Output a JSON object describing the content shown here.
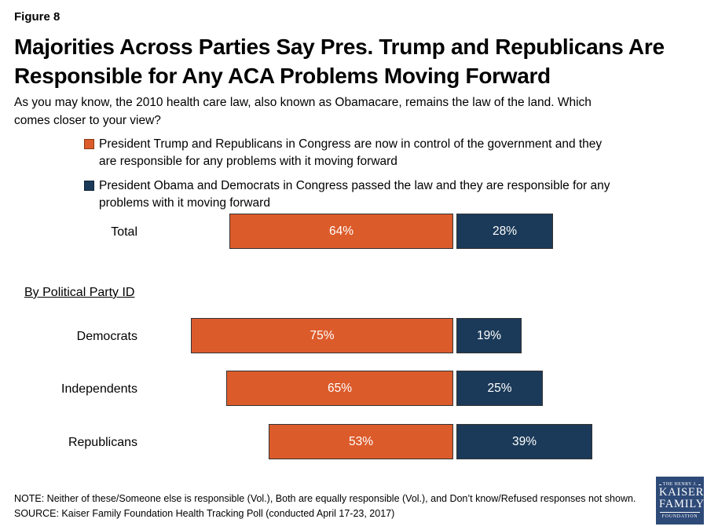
{
  "header": {
    "figure_label": "Figure 8",
    "title_lines": [
      "Majorities Across Parties Say Pres. Trump and Republicans Are",
      "Responsible for Any ACA Problems Moving Forward"
    ],
    "question_lines": [
      "As you may know, the 2010 health care law, also known as Obamacare, remains the law of the land. Which",
      "comes closer to your view?"
    ]
  },
  "legend": {
    "items": [
      {
        "color": "#DC5B2B",
        "lines": [
          "President Trump and Republicans in Congress are now in control of the government and they",
          "are responsible for any problems with it moving forward"
        ]
      },
      {
        "color": "#1B3A59",
        "lines": [
          "President Obama and Democrats in Congress passed the law and they are responsible for any",
          "problems with it moving forward"
        ]
      }
    ]
  },
  "chart_data": {
    "type": "bar",
    "orientation": "horizontal",
    "stacked": false,
    "title": "Majorities Across Parties Say Pres. Trump and Republicans Are Responsible for Any ACA Problems Moving Forward",
    "categories": [
      "Total",
      "Democrats",
      "Independents",
      "Republicans"
    ],
    "group_label": "By Political Party ID",
    "series": [
      {
        "name": "President Trump and Republicans in Congress are now in control of the government and they are responsible for any problems with it moving forward",
        "color": "#DC5B2B",
        "values": [
          64,
          75,
          65,
          53
        ],
        "labels": [
          "64%",
          "75%",
          "65%",
          "53%"
        ]
      },
      {
        "name": "President Obama and Democrats in Congress passed the law and they are responsible for any problems with it moving forward",
        "color": "#1B3A59",
        "values": [
          28,
          19,
          25,
          39
        ],
        "labels": [
          "28%",
          "19%",
          "25%",
          "39%"
        ]
      }
    ],
    "value_unit": "percent",
    "xlim": [
      0,
      100
    ],
    "legend_position": "top",
    "grid": false,
    "data_labels": "inside-center, white"
  },
  "footer": {
    "note": "NOTE: Neither of these/Someone else is responsible (Vol.), Both are equally responsible (Vol.), and Don’t know/Refused responses not shown.",
    "source": "SOURCE: Kaiser Family Foundation Health Tracking Poll (conducted April 17-23, 2017)"
  },
  "logo": {
    "top": "THE HENRY J.",
    "name1": "KAISER",
    "name2": "FAMILY",
    "bottom": "FOUNDATION"
  }
}
